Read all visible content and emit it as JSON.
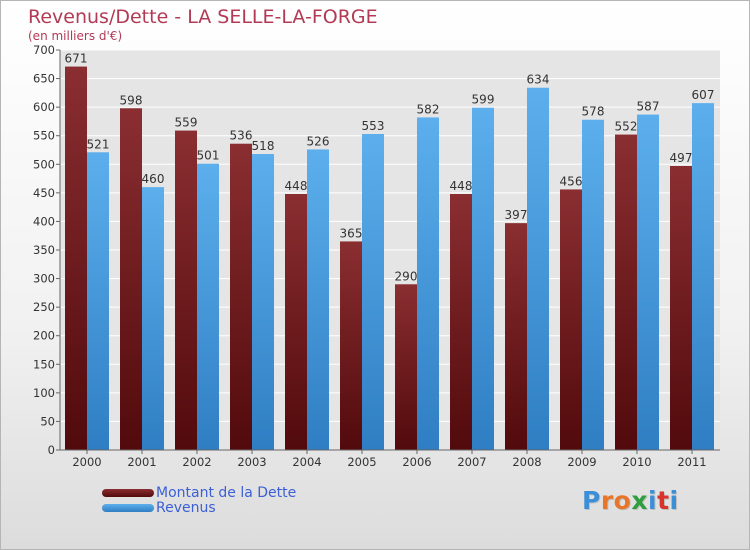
{
  "header": {
    "title": "Revenus/Dette - LA SELLE-LA-FORGE",
    "subtitle": "(en milliers d'€)"
  },
  "legend": [
    {
      "label": "Montant de la Dette",
      "color": "#7b1a1c"
    },
    {
      "label": "Revenus",
      "color": "#4b9fe2"
    }
  ],
  "logo": {
    "text": "Proxiti",
    "letter_colors": [
      "#3a8fd6",
      "#e8762a",
      "#e8762a",
      "#2e9e3e",
      "#3a8fd6",
      "#d9342b",
      "#3a8fd6"
    ]
  },
  "chart_data": {
    "type": "bar",
    "categories": [
      "2000",
      "2001",
      "2002",
      "2003",
      "2004",
      "2005",
      "2006",
      "2007",
      "2008",
      "2009",
      "2010",
      "2011"
    ],
    "series": [
      {
        "name": "Montant de la Dette",
        "values": [
          671,
          598,
          559,
          536,
          448,
          365,
          290,
          448,
          397,
          456,
          552,
          497
        ],
        "color": "#7b1a1c"
      },
      {
        "name": "Revenus",
        "values": [
          521,
          460,
          501,
          518,
          526,
          553,
          582,
          599,
          634,
          578,
          587,
          607
        ],
        "color": "#4b9fe2"
      }
    ],
    "ylim": [
      0,
      700
    ],
    "yticks": [
      0,
      50,
      100,
      150,
      200,
      250,
      300,
      350,
      400,
      450,
      500,
      550,
      600,
      650,
      700
    ],
    "xlabel": "",
    "ylabel": "",
    "grid": true,
    "legend_position": "bottom-left"
  }
}
